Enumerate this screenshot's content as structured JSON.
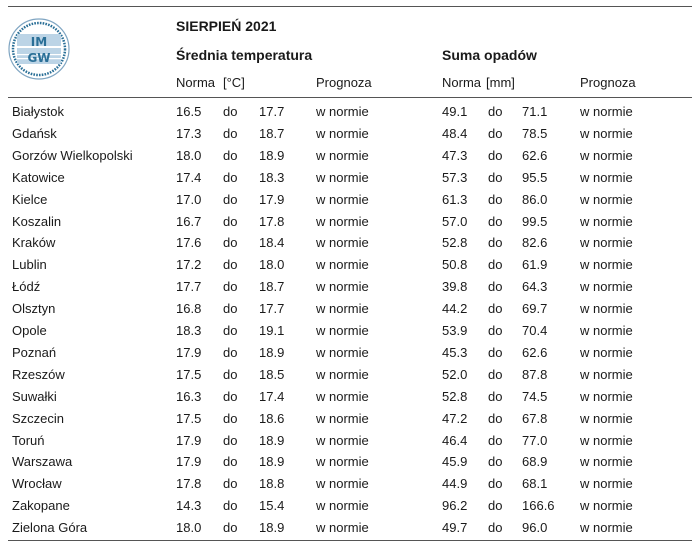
{
  "title": "SIERPIEŃ 2021",
  "logo_text": [
    "IM",
    "GW"
  ],
  "temperature": {
    "title": "Średnia temperatura",
    "norma_label": "Norma",
    "unit": "[°C]",
    "prognoza_label": "Prognoza"
  },
  "precipitation": {
    "title": "Suma opadów",
    "norma_label": "Norma",
    "unit": "[mm]",
    "prognoza_label": "Prognoza"
  },
  "rows": [
    {
      "city": "Białystok",
      "t_from": "16.5",
      "t_to": "17.7",
      "t_forecast": "w normie",
      "p_from": "49.1",
      "p_to": "71.1",
      "p_forecast": "w normie"
    },
    {
      "city": "Gdańsk",
      "t_from": "17.3",
      "t_to": "18.7",
      "t_forecast": "w normie",
      "p_from": "48.4",
      "p_to": "78.5",
      "p_forecast": "w normie"
    },
    {
      "city": "Gorzów Wielkopolski",
      "t_from": "18.0",
      "t_to": "18.9",
      "t_forecast": "w normie",
      "p_from": "47.3",
      "p_to": "62.6",
      "p_forecast": "w normie"
    },
    {
      "city": "Katowice",
      "t_from": "17.4",
      "t_to": "18.3",
      "t_forecast": "w normie",
      "p_from": "57.3",
      "p_to": "95.5",
      "p_forecast": "w normie"
    },
    {
      "city": "Kielce",
      "t_from": "17.0",
      "t_to": "17.9",
      "t_forecast": "w normie",
      "p_from": "61.3",
      "p_to": "86.0",
      "p_forecast": "w normie"
    },
    {
      "city": "Koszalin",
      "t_from": "16.7",
      "t_to": "17.8",
      "t_forecast": "w normie",
      "p_from": "57.0",
      "p_to": "99.5",
      "p_forecast": "w normie"
    },
    {
      "city": "Kraków",
      "t_from": "17.6",
      "t_to": "18.4",
      "t_forecast": "w normie",
      "p_from": "52.8",
      "p_to": "82.6",
      "p_forecast": "w normie"
    },
    {
      "city": "Lublin",
      "t_from": "17.2",
      "t_to": "18.0",
      "t_forecast": "w normie",
      "p_from": "50.8",
      "p_to": "61.9",
      "p_forecast": "w normie"
    },
    {
      "city": "Łódź",
      "t_from": "17.7",
      "t_to": "18.7",
      "t_forecast": "w normie",
      "p_from": "39.8",
      "p_to": "64.3",
      "p_forecast": "w normie"
    },
    {
      "city": "Olsztyn",
      "t_from": "16.8",
      "t_to": "17.7",
      "t_forecast": "w normie",
      "p_from": "44.2",
      "p_to": "69.7",
      "p_forecast": "w normie"
    },
    {
      "city": "Opole",
      "t_from": "18.3",
      "t_to": "19.1",
      "t_forecast": "w normie",
      "p_from": "53.9",
      "p_to": "70.4",
      "p_forecast": "w normie"
    },
    {
      "city": "Poznań",
      "t_from": "17.9",
      "t_to": "18.9",
      "t_forecast": "w normie",
      "p_from": "45.3",
      "p_to": "62.6",
      "p_forecast": "w normie"
    },
    {
      "city": "Rzeszów",
      "t_from": "17.5",
      "t_to": "18.5",
      "t_forecast": "w normie",
      "p_from": "52.0",
      "p_to": "87.8",
      "p_forecast": "w normie"
    },
    {
      "city": "Suwałki",
      "t_from": "16.3",
      "t_to": "17.4",
      "t_forecast": "w normie",
      "p_from": "52.8",
      "p_to": "74.5",
      "p_forecast": "w normie"
    },
    {
      "city": "Szczecin",
      "t_from": "17.5",
      "t_to": "18.6",
      "t_forecast": "w normie",
      "p_from": "47.2",
      "p_to": "67.8",
      "p_forecast": "w normie"
    },
    {
      "city": "Toruń",
      "t_from": "17.9",
      "t_to": "18.9",
      "t_forecast": "w normie",
      "p_from": "46.4",
      "p_to": "77.0",
      "p_forecast": "w normie"
    },
    {
      "city": "Warszawa",
      "t_from": "17.9",
      "t_to": "18.9",
      "t_forecast": "w normie",
      "p_from": "45.9",
      "p_to": "68.9",
      "p_forecast": "w normie"
    },
    {
      "city": "Wrocław",
      "t_from": "17.8",
      "t_to": "18.8",
      "t_forecast": "w normie",
      "p_from": "44.9",
      "p_to": "68.1",
      "p_forecast": "w normie"
    },
    {
      "city": "Zakopane",
      "t_from": "14.3",
      "t_to": "15.4",
      "t_forecast": "w normie",
      "p_from": "96.2",
      "p_to": "166.6",
      "p_forecast": "w normie"
    },
    {
      "city": "Zielona Góra",
      "t_from": "18.0",
      "t_to": "18.9",
      "t_forecast": "w normie",
      "p_from": "49.7",
      "p_to": "96.0",
      "p_forecast": "w normie"
    }
  ],
  "range_word": "do",
  "colors": {
    "text": "#1a1a1a",
    "rule": "#555555",
    "logo_blue": "#2a6f97",
    "logo_light": "#bcd4e6"
  },
  "icons": {
    "logo": "imgw-logo"
  }
}
